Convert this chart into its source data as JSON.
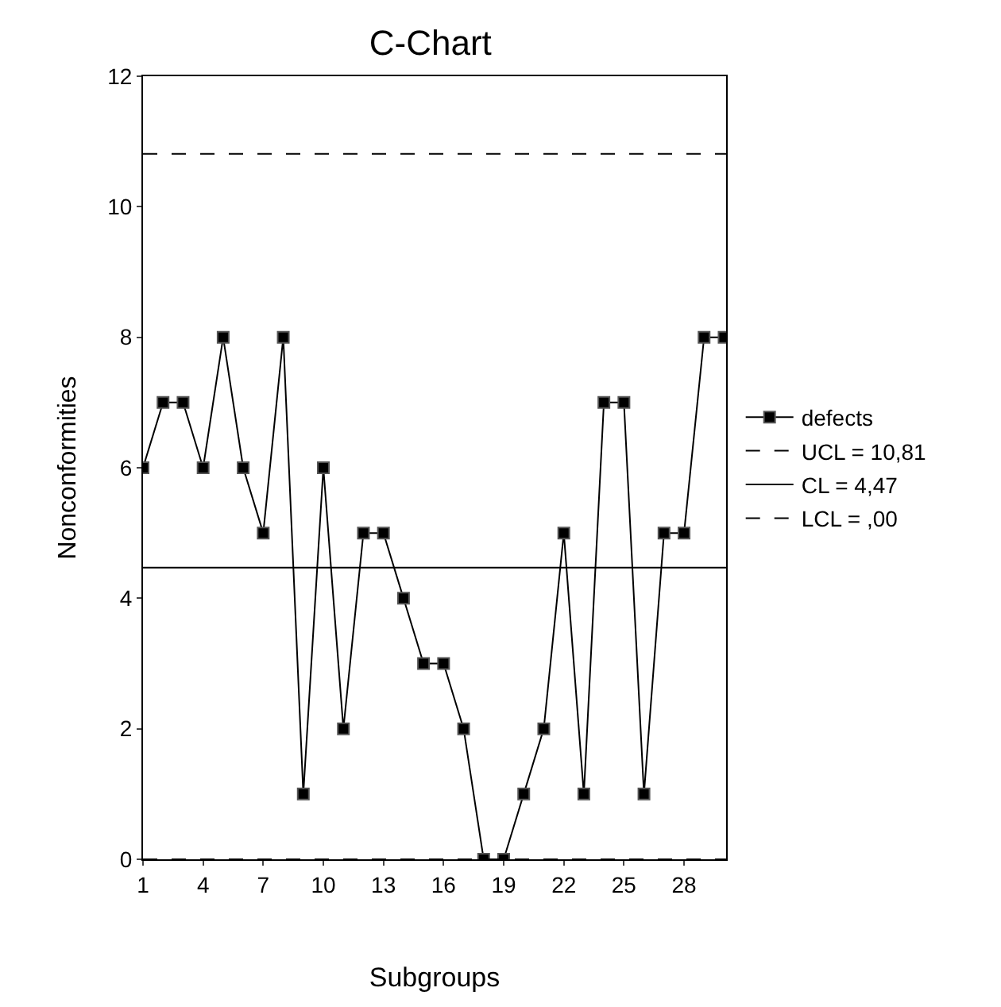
{
  "chart_data": {
    "type": "line",
    "title": "C-Chart",
    "xlabel": "Subgroups",
    "ylabel": "Nonconformities",
    "categories": [
      "1",
      null,
      null,
      "4",
      null,
      null,
      "7",
      null,
      null,
      "10",
      null,
      null,
      "13",
      null,
      null,
      "16",
      null,
      null,
      "19",
      null,
      null,
      "22",
      null,
      null,
      "25",
      null,
      null,
      "28",
      null,
      null
    ],
    "series": [
      {
        "name": "defects",
        "color": "#000000",
        "values": [
          6,
          7,
          7,
          6,
          8,
          6,
          5,
          8,
          1,
          6,
          2,
          5,
          5,
          4,
          3,
          3,
          2,
          0,
          0,
          1,
          2,
          5,
          1,
          7,
          7,
          1,
          5,
          5,
          8,
          8
        ]
      }
    ],
    "marker": "square",
    "line_style": "solid",
    "ylim": [
      0,
      12
    ],
    "yticks": [
      0,
      2,
      4,
      6,
      8,
      10,
      12
    ],
    "legend": "right",
    "ref_lines": [
      {
        "axis": "y",
        "value": 10.81,
        "label": "UCL = 10,81",
        "line_style": "dashed",
        "color": "#000000"
      },
      {
        "axis": "y",
        "value": 4.47,
        "label": "CL = 4,47",
        "line_style": "solid",
        "color": "#000000"
      },
      {
        "axis": "y",
        "value": 0.0,
        "label": "LCL = ,00",
        "line_style": "dashed",
        "color": "#000000"
      }
    ]
  }
}
